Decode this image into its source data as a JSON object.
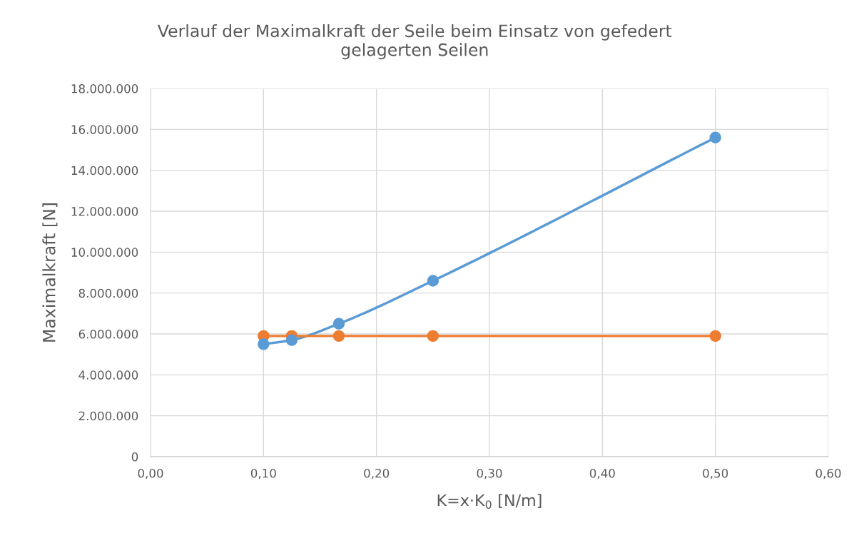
{
  "chart_data": {
    "type": "line",
    "title": "Verlauf der Maximalkraft der Seile beim Einsatz von gefedert\ngelagerten Seilen",
    "xlabel": "K=x·K$_{0}$ [N/m]",
    "ylabel": "Maximalkraft [N]",
    "x": [
      0.1,
      0.125,
      0.1667,
      0.25,
      0.5
    ],
    "series": [
      {
        "color": "#5b9bd5",
        "values": [
          5500000,
          5700000,
          6500000,
          8600000,
          15600000
        ]
      },
      {
        "color": "#ed7d31",
        "values": [
          5900000,
          5900000,
          5900000,
          5900000,
          5900000
        ]
      }
    ],
    "xlim": [
      0,
      0.6
    ],
    "xticks": [
      {
        "value": 0,
        "label": "0,00"
      },
      {
        "value": 0.1,
        "label": "0,10"
      },
      {
        "value": 0.2,
        "label": "0,20"
      },
      {
        "value": 0.3,
        "label": "0,30"
      },
      {
        "value": 0.4,
        "label": "0,40"
      },
      {
        "value": 0.5,
        "label": "0,50"
      },
      {
        "value": 0.6,
        "label": "0,60"
      }
    ],
    "ylim": [
      0,
      18000000
    ],
    "yticks": [
      0,
      {
        "value": 2000000,
        "label": "2.000.000"
      },
      {
        "value": 4000000,
        "label": "4.000.000"
      },
      {
        "value": 6000000,
        "label": "6.000.000"
      },
      {
        "value": 8000000,
        "label": "8.000.000"
      },
      {
        "value": 10000000,
        "label": "10.000.000"
      },
      {
        "value": 12000000,
        "label": "12.000.000"
      },
      {
        "value": 14000000,
        "label": "14.000.000"
      },
      {
        "value": 16000000,
        "label": "16.000.000"
      },
      {
        "value": 18000000,
        "label": "18.000.000"
      }
    ],
    "grid": true,
    "marker": "circle",
    "line_style": "solid"
  }
}
